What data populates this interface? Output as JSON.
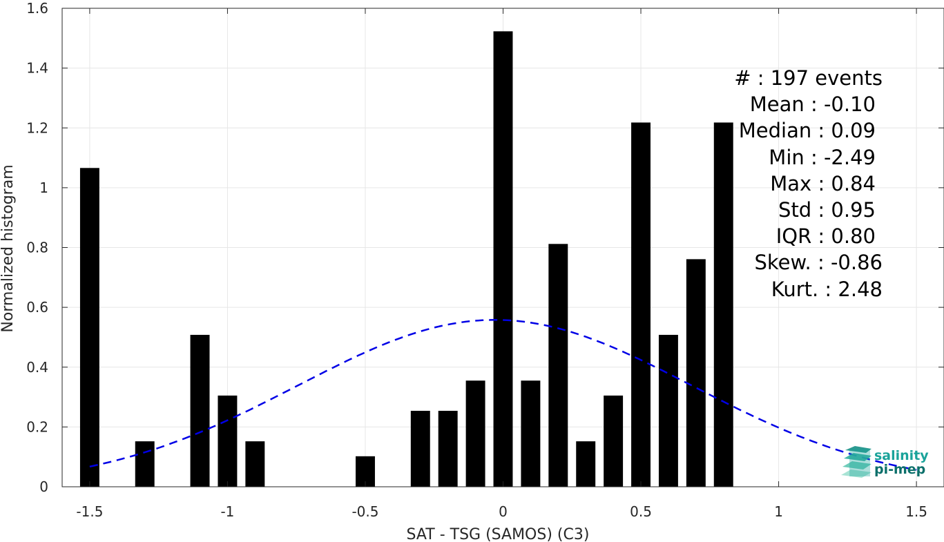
{
  "chart_data": {
    "type": "bar",
    "xlabel": "SAT - TSG (SAMOS) (C3)",
    "ylabel": "Normalized histogram",
    "xlim": [
      -1.6,
      1.6
    ],
    "ylim": [
      0,
      1.6
    ],
    "xticks": [
      -1.5,
      -1,
      -0.5,
      0,
      0.5,
      1,
      1.5
    ],
    "xtick_labels": [
      "-1.5",
      "-1",
      "-0.5",
      "0",
      "0.5",
      "1",
      "1.5"
    ],
    "yticks": [
      0,
      0.2,
      0.4,
      0.6,
      0.8,
      1,
      1.2,
      1.4,
      1.6
    ],
    "ytick_labels": [
      "0",
      "0.2",
      "0.4",
      "0.6",
      "0.8",
      "1",
      "1.2",
      "1.4",
      "1.6"
    ],
    "grid": true,
    "bar_width": 0.07,
    "bar_color": "#000000",
    "bars": [
      {
        "x": -1.5,
        "y": 1.066
      },
      {
        "x": -1.3,
        "y": 0.152
      },
      {
        "x": -1.1,
        "y": 0.508
      },
      {
        "x": -1.0,
        "y": 0.305
      },
      {
        "x": -0.9,
        "y": 0.152
      },
      {
        "x": -0.5,
        "y": 0.102
      },
      {
        "x": -0.3,
        "y": 0.254
      },
      {
        "x": -0.2,
        "y": 0.254
      },
      {
        "x": -0.1,
        "y": 0.355
      },
      {
        "x": 0.0,
        "y": 1.523
      },
      {
        "x": 0.1,
        "y": 0.355
      },
      {
        "x": 0.2,
        "y": 0.812
      },
      {
        "x": 0.3,
        "y": 0.152
      },
      {
        "x": 0.4,
        "y": 0.305
      },
      {
        "x": 0.5,
        "y": 1.218
      },
      {
        "x": 0.6,
        "y": 0.508
      },
      {
        "x": 0.7,
        "y": 0.761
      },
      {
        "x": 0.8,
        "y": 1.218
      }
    ],
    "fit_curve": {
      "style": "dashed",
      "color": "#0000e6",
      "mean": -0.03,
      "std": 0.715,
      "amplitude": 0.558,
      "x_range": [
        -1.5,
        1.5
      ]
    }
  },
  "stats": {
    "lines": [
      "#  : 197 events",
      "Mean : -0.10",
      "Median : 0.09",
      "Min : -2.49",
      "Max : 0.84",
      "Std : 0.95",
      "IQR : 0.80",
      "Skew. : -0.86",
      "Kurt. : 2.48"
    ]
  },
  "logo": {
    "line1": "salinity",
    "line2": "pi-mep",
    "color1": "#1aa39a",
    "color2": "#0b6f6a"
  }
}
